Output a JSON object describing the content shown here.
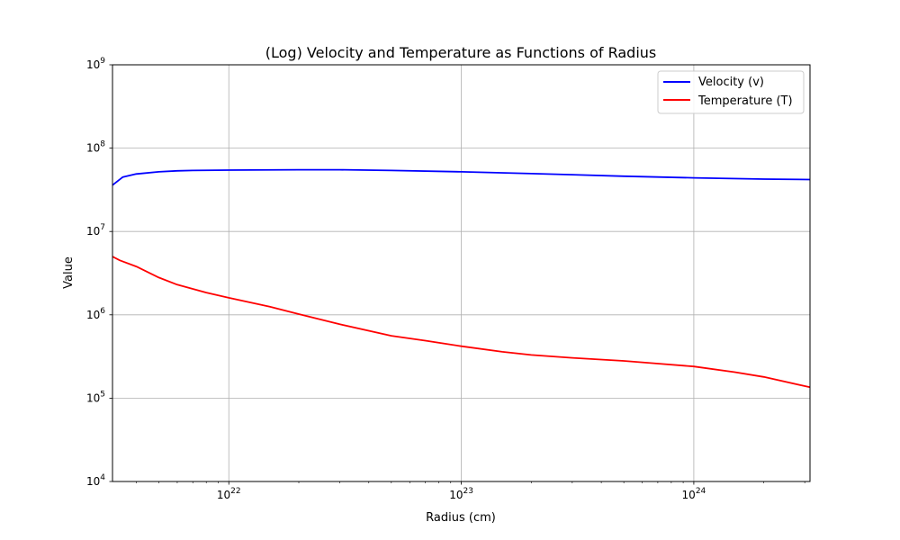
{
  "chart_data": {
    "type": "line",
    "title": "(Log) Velocity and Temperature as Functions of Radius",
    "xlabel": "Radius (cm)",
    "ylabel": "Value",
    "xscale": "log",
    "yscale": "log",
    "xlim": [
      3.16e+21,
      3.16e+24
    ],
    "ylim": [
      10000.0,
      1000000000.0
    ],
    "grid": true,
    "legend_position": "top-right",
    "x_ticks": [
      {
        "base": "10",
        "exp": "22",
        "value": 1e+22
      },
      {
        "base": "10",
        "exp": "23",
        "value": 1e+23
      },
      {
        "base": "10",
        "exp": "24",
        "value": 1e+24
      }
    ],
    "y_ticks": [
      {
        "base": "10",
        "exp": "4",
        "value": 10000.0
      },
      {
        "base": "10",
        "exp": "5",
        "value": 100000.0
      },
      {
        "base": "10",
        "exp": "6",
        "value": 1000000.0
      },
      {
        "base": "10",
        "exp": "7",
        "value": 10000000.0
      },
      {
        "base": "10",
        "exp": "8",
        "value": 100000000.0
      },
      {
        "base": "10",
        "exp": "9",
        "value": 1000000000.0
      }
    ],
    "series": [
      {
        "name": "Velocity (v)",
        "color": "#0000ff",
        "x": [
          3.16e+21,
          3.5e+21,
          4e+21,
          5e+21,
          6e+21,
          7e+21,
          1e+22,
          2e+22,
          3e+22,
          5e+22,
          1e+23,
          2e+23,
          3e+23,
          5e+23,
          1e+24,
          2e+24,
          3.16e+24
        ],
        "y": [
          36000000.0,
          45000000.0,
          49000000.0,
          52000000.0,
          53500000.0,
          54000000.0,
          54500000.0,
          55000000.0,
          55000000.0,
          54000000.0,
          52000000.0,
          49500000.0,
          48000000.0,
          46000000.0,
          44000000.0,
          42500000.0,
          42000000.0
        ]
      },
      {
        "name": "Temperature (T)",
        "color": "#ff0000",
        "x": [
          3.16e+21,
          3.4e+21,
          4e+21,
          5e+21,
          6e+21,
          8e+21,
          1e+22,
          1.5e+22,
          2e+22,
          3e+22,
          5e+22,
          7e+22,
          1e+23,
          1.5e+23,
          2e+23,
          3e+23,
          5e+23,
          7e+23,
          1e+24,
          1.5e+24,
          2e+24,
          3.16e+24
        ],
        "y": [
          5000000.0,
          4500000.0,
          3800000.0,
          2800000.0,
          2300000.0,
          1850000.0,
          1600000.0,
          1250000.0,
          1020000.0,
          770000.0,
          560000.0,
          490000.0,
          420000.0,
          360000.0,
          330000.0,
          305000.0,
          280000.0,
          260000.0,
          240000.0,
          205000.0,
          180000.0,
          135000.0
        ]
      }
    ]
  }
}
